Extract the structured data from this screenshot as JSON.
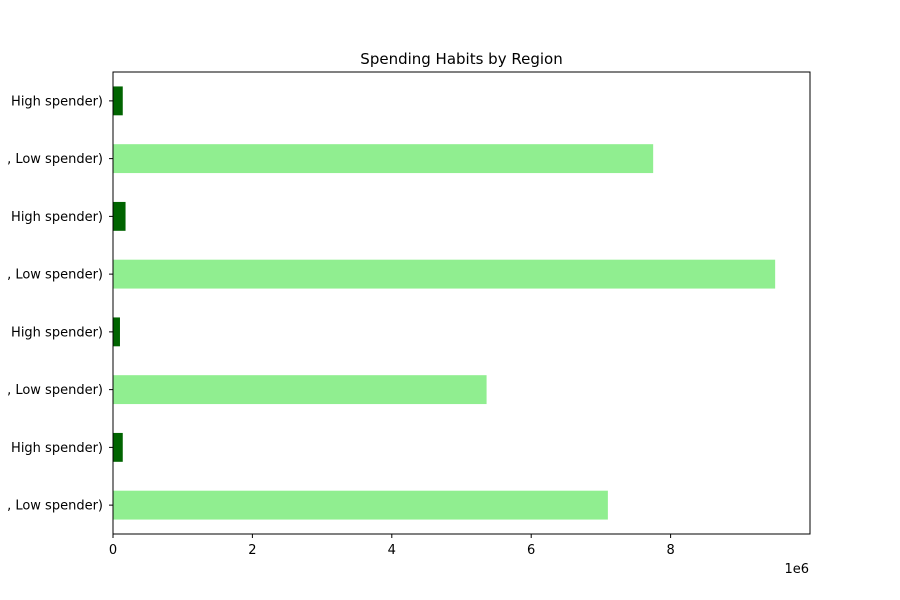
{
  "chart_data": {
    "type": "bar",
    "orientation": "horizontal",
    "title": "Spending Habits by Region",
    "xlabel": "",
    "ylabel": "",
    "x_offset_label": "1e6",
    "x_scale": 1000000,
    "xlim": [
      0,
      10000000
    ],
    "x_ticks": [
      0,
      2,
      4,
      6,
      8
    ],
    "grid": false,
    "categories": [
      ", Low spender)",
      " High spender)",
      ", Low spender)",
      " High spender)",
      ", Low spender)",
      " High spender)",
      ", Low spender)",
      " High spender)"
    ],
    "values": [
      7100000,
      140000,
      5360000,
      100000,
      9500000,
      180000,
      7750000,
      140000
    ],
    "bar_colors": [
      "#90ee90",
      "#006400",
      "#90ee90",
      "#006400",
      "#90ee90",
      "#006400",
      "#90ee90",
      "#006400"
    ]
  }
}
